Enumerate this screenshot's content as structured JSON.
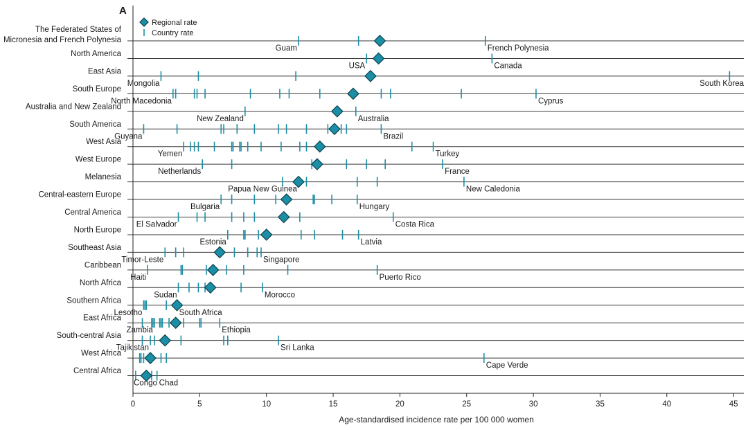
{
  "panel_label": "A",
  "chart_data": {
    "type": "scatter",
    "xlabel": "Age-standardised incidence rate per 100 000 women",
    "xlim": [
      0,
      46
    ],
    "xticks": [
      0,
      5,
      10,
      15,
      20,
      25,
      30,
      35,
      40,
      45
    ],
    "legend": {
      "placement": "top-left",
      "entries": [
        {
          "name": "Regional rate",
          "marker": "diamond"
        },
        {
          "name": "Country rate",
          "marker": "tick"
        }
      ]
    },
    "colors": {
      "marker": "#1b8fa6",
      "marker_edge": "#0c3f4c",
      "rule": "#3a3a3a",
      "axis": "#222222"
    },
    "regions": [
      {
        "label_lines": [
          "The Federated States of",
          "Micronesia and French Polynesia"
        ],
        "regional_rate": 18.5,
        "country_rates": [
          12.4,
          16.9,
          26.4
        ],
        "annotations": [
          {
            "text": "Guam",
            "x": 12.4
          },
          {
            "text": "French Polynesia",
            "x": 26.4
          }
        ]
      },
      {
        "label_lines": [
          "North America"
        ],
        "regional_rate": 18.4,
        "country_rates": [
          17.5,
          26.9
        ],
        "annotations": [
          {
            "text": "USA",
            "x": 17.5
          },
          {
            "text": "Canada",
            "x": 26.9
          }
        ]
      },
      {
        "label_lines": [
          "East Asia"
        ],
        "regional_rate": 17.8,
        "country_rates": [
          2.1,
          4.9,
          12.2,
          44.7
        ],
        "annotations": [
          {
            "text": "Mongolia",
            "x": 2.1
          },
          {
            "text": "South Korea",
            "x": 44.7
          }
        ]
      },
      {
        "label_lines": [
          "South Europe"
        ],
        "regional_rate": 16.5,
        "country_rates": [
          3.0,
          3.2,
          4.6,
          4.8,
          5.4,
          8.8,
          11.0,
          11.7,
          14.0,
          18.6,
          19.3,
          24.6,
          30.2
        ],
        "annotations": [
          {
            "text": "North Macedonia",
            "x": 3.0
          },
          {
            "text": "Cyprus",
            "x": 30.2
          }
        ]
      },
      {
        "label_lines": [
          "Australia and New Zealand"
        ],
        "regional_rate": 15.3,
        "country_rates": [
          8.4,
          16.7
        ],
        "annotations": [
          {
            "text": "New Zealand",
            "x": 8.4
          },
          {
            "text": "Australia",
            "x": 16.7
          }
        ]
      },
      {
        "label_lines": [
          "South America"
        ],
        "regional_rate": 15.1,
        "country_rates": [
          0.8,
          3.3,
          6.6,
          6.8,
          7.8,
          9.1,
          10.9,
          11.5,
          13.0,
          14.6,
          15.6,
          16.0,
          18.6
        ],
        "annotations": [
          {
            "text": "Guyana",
            "x": 0.8
          },
          {
            "text": "Brazil",
            "x": 18.6
          }
        ]
      },
      {
        "label_lines": [
          "West Asia"
        ],
        "regional_rate": 14.0,
        "country_rates": [
          3.8,
          4.3,
          4.6,
          4.9,
          6.1,
          7.4,
          7.5,
          8.0,
          8.1,
          8.6,
          9.6,
          11.1,
          12.5,
          13.0,
          20.9,
          22.5
        ],
        "annotations": [
          {
            "text": "Yemen",
            "x": 3.8
          },
          {
            "text": "Turkey",
            "x": 22.5
          }
        ]
      },
      {
        "label_lines": [
          "West Europe"
        ],
        "regional_rate": 13.8,
        "country_rates": [
          5.2,
          7.4,
          13.4,
          16.0,
          17.5,
          18.9,
          23.2
        ],
        "annotations": [
          {
            "text": "Netherlands",
            "x": 5.2
          },
          {
            "text": "France",
            "x": 23.2
          }
        ]
      },
      {
        "label_lines": [
          "Melanesia"
        ],
        "regional_rate": 12.4,
        "country_rates": [
          11.2,
          13.0,
          16.8,
          18.3,
          24.8
        ],
        "annotations": [
          {
            "text": "Papua New Guinea",
            "x": 12.4
          },
          {
            "text": "New Caledonia",
            "x": 24.8
          }
        ]
      },
      {
        "label_lines": [
          "Central-eastern Europe"
        ],
        "regional_rate": 11.5,
        "country_rates": [
          6.6,
          7.4,
          9.1,
          10.7,
          13.5,
          13.6,
          14.9,
          16.8
        ],
        "annotations": [
          {
            "text": "Bulgaria",
            "x": 6.6
          },
          {
            "text": "Hungary",
            "x": 16.8
          }
        ]
      },
      {
        "label_lines": [
          "Central America"
        ],
        "regional_rate": 11.3,
        "country_rates": [
          3.4,
          4.8,
          5.4,
          7.4,
          8.3,
          9.1,
          12.5,
          19.5
        ],
        "annotations": [
          {
            "text": "El Salvador",
            "x": 3.4
          },
          {
            "text": "Costa Rica",
            "x": 19.5
          }
        ]
      },
      {
        "label_lines": [
          "North Europe"
        ],
        "regional_rate": 10.0,
        "country_rates": [
          7.1,
          8.3,
          8.4,
          9.4,
          12.6,
          13.6,
          15.7,
          16.9
        ],
        "annotations": [
          {
            "text": "Estonia",
            "x": 7.1
          },
          {
            "text": "Latvia",
            "x": 16.9
          }
        ]
      },
      {
        "label_lines": [
          "Southeast Asia"
        ],
        "regional_rate": 6.5,
        "country_rates": [
          2.4,
          3.2,
          3.8,
          7.6,
          8.6,
          9.3,
          9.6
        ],
        "annotations": [
          {
            "text": "Timor-Leste",
            "x": 2.4
          },
          {
            "text": "Singapore",
            "x": 9.6
          }
        ]
      },
      {
        "label_lines": [
          "Caribbean"
        ],
        "regional_rate": 6.0,
        "country_rates": [
          1.1,
          3.6,
          3.7,
          5.5,
          7.0,
          8.3,
          11.6,
          18.3
        ],
        "annotations": [
          {
            "text": "Haiti",
            "x": 1.1
          },
          {
            "text": "Puerto Rico",
            "x": 18.3
          }
        ]
      },
      {
        "label_lines": [
          "North Africa"
        ],
        "regional_rate": 5.8,
        "country_rates": [
          3.4,
          4.2,
          4.9,
          5.4,
          8.1,
          9.7
        ],
        "annotations": [
          {
            "text": "Sudan",
            "x": 3.4
          },
          {
            "text": "Morocco",
            "x": 9.7
          }
        ]
      },
      {
        "label_lines": [
          "Southern Africa"
        ],
        "regional_rate": 3.3,
        "country_rates": [
          0.8,
          0.9,
          1.0,
          2.5,
          3.3
        ],
        "annotations": [
          {
            "text": "Lesotho",
            "x": 0.8
          },
          {
            "text": "South Africa",
            "x": 3.3
          }
        ]
      },
      {
        "label_lines": [
          "East Africa"
        ],
        "regional_rate": 3.2,
        "country_rates": [
          0.7,
          1.4,
          1.5,
          1.6,
          2.0,
          2.1,
          2.2,
          2.7,
          3.8,
          5.0,
          5.1,
          6.5
        ],
        "annotations": [
          {
            "text": "Zambia",
            "x": 1.6
          },
          {
            "text": "Ethiopia",
            "x": 6.5
          }
        ]
      },
      {
        "label_lines": [
          "South-central Asia"
        ],
        "regional_rate": 2.4,
        "country_rates": [
          0.7,
          1.3,
          1.6,
          3.6,
          6.8,
          7.1,
          10.9
        ],
        "annotations": [
          {
            "text": "Tajikistan",
            "x": 1.3
          },
          {
            "text": "Sri Lanka",
            "x": 10.9
          }
        ]
      },
      {
        "label_lines": [
          "West Africa"
        ],
        "regional_rate": 1.3,
        "country_rates": [
          0.5,
          0.6,
          0.8,
          2.1,
          2.5,
          26.3
        ],
        "annotations": [
          {
            "text": "Cape Verde",
            "x": 26.3
          }
        ]
      },
      {
        "label_lines": [
          "Central Africa"
        ],
        "regional_rate": 1.0,
        "country_rates": [
          0.2,
          1.4,
          1.8
        ],
        "annotations": [
          {
            "text": "Congo",
            "x": 0.2
          },
          {
            "text": "Chad",
            "x": 1.8
          }
        ]
      }
    ]
  }
}
